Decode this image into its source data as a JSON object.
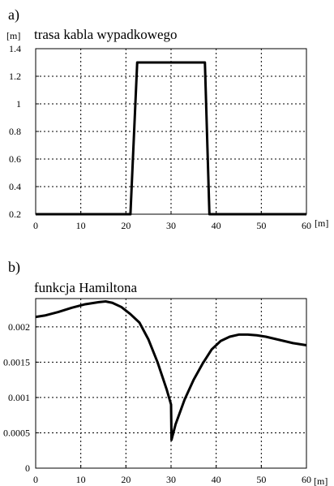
{
  "chart_data": [
    {
      "panel_label": "a)",
      "type": "line",
      "title": "trasa kabla wypadkowego",
      "ylabel": "[m]",
      "xlabel": "[m]",
      "xlim": [
        0,
        60
      ],
      "ylim": [
        0.2,
        1.4
      ],
      "x_ticks": [
        "0",
        "10",
        "20",
        "30",
        "40",
        "50",
        "60"
      ],
      "y_ticks": [
        "0.2",
        "0.4",
        "0.6",
        "0.8",
        "1",
        "1.2",
        "1.4"
      ],
      "grid": true,
      "series": [
        {
          "x": [
            0,
            21,
            22.5,
            37.5,
            38.5,
            60
          ],
          "y": [
            0.2,
            0.2,
            1.3,
            1.3,
            0.2,
            0.2
          ]
        }
      ]
    },
    {
      "panel_label": "b)",
      "type": "line",
      "title": "funkcja Hamiltona",
      "ylabel": "",
      "xlabel": "[m]",
      "xlim": [
        0,
        60
      ],
      "ylim": [
        0,
        0.0024
      ],
      "x_ticks": [
        "0",
        "10",
        "20",
        "30",
        "40",
        "50",
        "60"
      ],
      "y_ticks": [
        "0",
        "0.0005",
        "0.001",
        "0.0015",
        "0.002"
      ],
      "grid": true,
      "series": [
        {
          "x": [
            0,
            2,
            5,
            8,
            11,
            14,
            15.5,
            17,
            19,
            21,
            23,
            25,
            27,
            29,
            30,
            30.1,
            31,
            33,
            35,
            37,
            39,
            41,
            43,
            45,
            47,
            49,
            51,
            53,
            55,
            57,
            59,
            60
          ],
          "y": [
            0.00214,
            0.00216,
            0.00221,
            0.00227,
            0.00232,
            0.00235,
            0.00236,
            0.00234,
            0.00228,
            0.00218,
            0.00206,
            0.00182,
            0.0015,
            0.00112,
            0.0009,
            0.0004,
            0.00062,
            0.00097,
            0.00125,
            0.00148,
            0.00168,
            0.0018,
            0.00186,
            0.00189,
            0.00189,
            0.00188,
            0.00186,
            0.00183,
            0.0018,
            0.00177,
            0.00175,
            0.00174
          ]
        }
      ]
    }
  ]
}
